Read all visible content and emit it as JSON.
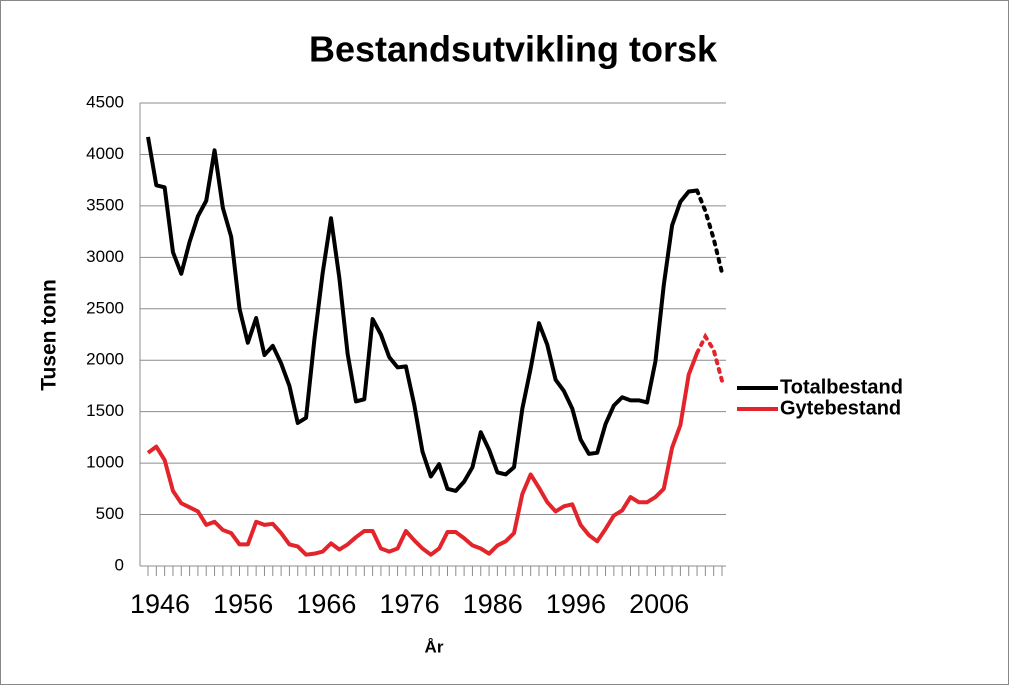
{
  "chart_data": {
    "type": "line",
    "title": "Bestandsutvikling torsk",
    "y_label": "Tusen tonn",
    "x_label": "År",
    "categories": [
      "1946",
      null,
      null,
      null,
      null,
      null,
      null,
      null,
      null,
      null,
      "1956",
      null,
      null,
      null,
      null,
      null,
      null,
      null,
      null,
      null,
      "1966",
      null,
      null,
      null,
      null,
      null,
      null,
      null,
      null,
      null,
      "1976",
      null,
      null,
      null,
      null,
      null,
      null,
      null,
      null,
      null,
      "1986",
      null,
      null,
      null,
      null,
      null,
      null,
      null,
      null,
      null,
      "1996",
      null,
      null,
      null,
      null,
      null,
      null,
      null,
      null,
      null,
      "2006",
      null,
      null,
      null,
      null,
      null,
      null,
      null,
      null,
      null
    ],
    "ylim": [
      0,
      4500
    ],
    "yticks": [
      0,
      500,
      1000,
      1500,
      2000,
      2500,
      3000,
      3500,
      4000,
      4500
    ],
    "grid": true,
    "legend": "right",
    "series": [
      {
        "name": "Totalbestand",
        "color": "#000000",
        "values": [
          4170,
          3700,
          3680,
          3050,
          2840,
          3150,
          3400,
          3550,
          4040,
          3480,
          3200,
          2500,
          2170,
          2410,
          2050,
          2140,
          1970,
          1750,
          1390,
          1440,
          2200,
          2850,
          3380,
          2800,
          2060,
          1600,
          1620,
          2400,
          2250,
          2030,
          1930,
          1940,
          1570,
          1110,
          870,
          990,
          750,
          730,
          820,
          960,
          1300,
          1130,
          910,
          890,
          960,
          1530,
          1920,
          2360,
          2150,
          1810,
          1700,
          1530,
          1230,
          1090,
          1100,
          1380,
          1560,
          1640,
          1610,
          1610,
          1590,
          1990,
          2730,
          3310,
          3540,
          3640,
          3650,
          null,
          null,
          null
        ],
        "projection": [
          null,
          null,
          null,
          null,
          null,
          null,
          null,
          null,
          null,
          null,
          null,
          null,
          null,
          null,
          null,
          null,
          null,
          null,
          null,
          null,
          null,
          null,
          null,
          null,
          null,
          null,
          null,
          null,
          null,
          null,
          null,
          null,
          null,
          null,
          null,
          null,
          null,
          null,
          null,
          null,
          null,
          null,
          null,
          null,
          null,
          null,
          null,
          null,
          null,
          null,
          null,
          null,
          null,
          null,
          null,
          null,
          null,
          null,
          null,
          null,
          null,
          null,
          null,
          null,
          null,
          null,
          null,
          3450,
          3180,
          2850
        ]
      },
      {
        "name": "Gytebestand",
        "color": "#e3242b",
        "values": [
          1100,
          1160,
          1030,
          730,
          610,
          570,
          530,
          400,
          430,
          350,
          320,
          210,
          210,
          430,
          400,
          410,
          320,
          210,
          190,
          110,
          120,
          140,
          220,
          160,
          210,
          280,
          340,
          340,
          170,
          140,
          170,
          340,
          250,
          170,
          110,
          170,
          330,
          330,
          270,
          200,
          170,
          120,
          200,
          240,
          320,
          700,
          890,
          760,
          620,
          530,
          580,
          600,
          400,
          300,
          240,
          360,
          490,
          540,
          670,
          620,
          620,
          670,
          750,
          1150,
          1370,
          1860,
          2070,
          null,
          null,
          null
        ],
        "projection": [
          null,
          null,
          null,
          null,
          null,
          null,
          null,
          null,
          null,
          null,
          null,
          null,
          null,
          null,
          null,
          null,
          null,
          null,
          null,
          null,
          null,
          null,
          null,
          null,
          null,
          null,
          null,
          null,
          null,
          null,
          null,
          null,
          null,
          null,
          null,
          null,
          null,
          null,
          null,
          null,
          null,
          null,
          null,
          null,
          null,
          null,
          null,
          null,
          null,
          null,
          null,
          null,
          null,
          null,
          null,
          null,
          null,
          null,
          null,
          null,
          null,
          null,
          null,
          null,
          null,
          null,
          null,
          2230,
          2100,
          1800
        ]
      }
    ]
  }
}
